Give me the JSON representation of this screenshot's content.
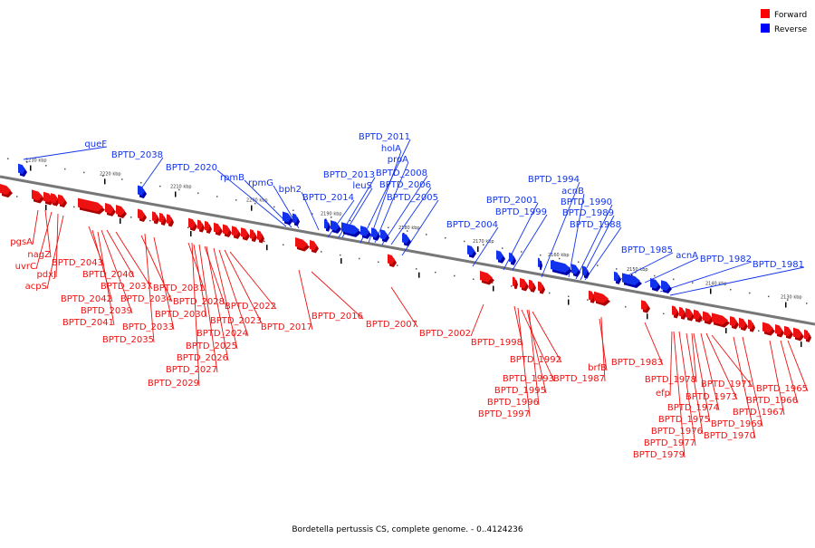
{
  "legend": [
    {
      "label": "Forward",
      "color": "#ff0000"
    },
    {
      "label": "Reverse",
      "color": "#0000ff"
    }
  ],
  "caption": "Bordetella pertussis CS, complete genome. - 0..4124236",
  "colors": {
    "forward": "#ee1111",
    "reverse": "#1133ee",
    "backbone": "#777777",
    "dark_fwd": "#aa0000",
    "dark_rev": "#0000aa"
  },
  "kbp_marks": [
    "2230 kbp",
    "2220 kbp",
    "2210 kbp",
    "2200 kbp",
    "2190 kbp",
    "2180 kbp",
    "2170 kbp",
    "2160 kbp",
    "2150 kbp",
    "2140 kbp",
    "2130 kbp"
  ],
  "reverse_labels": [
    "queF",
    "BPTD_2038",
    "BPTD_2020",
    "rpmB",
    "rpmG",
    "bph2",
    "BPTD_2014",
    "BPTD_2013",
    "leuS",
    "BPTD_2011",
    "holA",
    "proA",
    "BPTD_2008",
    "BPTD_2006",
    "BPTD_2005",
    "BPTD_2004",
    "BPTD_2001",
    "BPTD_1999",
    "BPTD_1994",
    "acnB",
    "BPTD_1990",
    "BPTD_1989",
    "BPTD_1988",
    "BPTD_1985",
    "acnA",
    "BPTD_1982",
    "BPTD_1981"
  ],
  "forward_labels": [
    "pgsA",
    "nagZ",
    "uvrC",
    "pdxJ",
    "acpS",
    "BPTD_2043",
    "BPTD_2040",
    "BPTD_2042",
    "BPTD_2037",
    "BPTD_2039",
    "BPTD_2034",
    "BPTD_2041",
    "BPTD_2033",
    "BPTD_2035",
    "BPTD_2031",
    "BPTD_2028",
    "BPTD_2030",
    "BPTD_2022",
    "BPTD_2024",
    "BPTD_2023",
    "BPTD_2025",
    "BPTD_2026",
    "BPTD_2027",
    "BPTD_2029",
    "BPTD_2017",
    "BPTD_2016",
    "BPTD_2007",
    "BPTD_2002",
    "BPTD_1998",
    "BPTD_1992",
    "BPTD_1993",
    "BPTD_1995",
    "BPTD_1996",
    "BPTD_1997",
    "BPTD_1987",
    "brfB",
    "BPTD_1983",
    "BPTD_1978",
    "efp",
    "BPTD_1971",
    "BPTD_1973",
    "BPTD_1974",
    "BPTD_1975",
    "BPTD_1976",
    "BPTD_1977",
    "BPTD_1979",
    "BPTD_1965",
    "BPTD_1966",
    "BPTD_1967",
    "BPTD_1969",
    "BPTD_1970"
  ]
}
